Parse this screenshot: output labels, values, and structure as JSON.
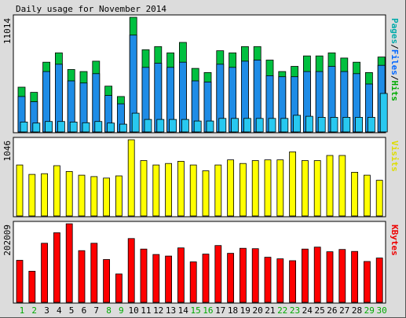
{
  "chart_data": {
    "type": "bar",
    "title": "Daily usage for November 2014",
    "days": [
      "1",
      "2",
      "3",
      "4",
      "5",
      "6",
      "7",
      "8",
      "9",
      "10",
      "11",
      "12",
      "13",
      "14",
      "15",
      "16",
      "17",
      "18",
      "19",
      "20",
      "21",
      "22",
      "23",
      "24",
      "25",
      "26",
      "27",
      "28",
      "29",
      "30"
    ],
    "weekend_days": [
      "1",
      "2",
      "8",
      "9",
      "15",
      "16",
      "22",
      "23",
      "29",
      "30"
    ],
    "panels": [
      {
        "id": "hits",
        "max_label": "11014",
        "ymax": 11014,
        "legend": [
          {
            "text": "Pages",
            "color": "#00aaaa"
          },
          {
            "text": "/",
            "color": "#000000"
          },
          {
            "text": "Files",
            "color": "#0066ff"
          },
          {
            "text": "/",
            "color": "#000000"
          },
          {
            "text": "Hits",
            "color": "#00aa00"
          }
        ],
        "series": [
          {
            "name": "Hits",
            "color": "#00c040",
            "values": [
              4300,
              3800,
              6700,
              7600,
              6000,
              5800,
              6800,
              4400,
              3400,
              11014,
              7900,
              8200,
              7600,
              8600,
              6100,
              5700,
              7800,
              7600,
              8200,
              8200,
              6900,
              5800,
              6300,
              7300,
              7300,
              7600,
              7100,
              6700,
              5700,
              7200
            ]
          },
          {
            "name": "Files",
            "color": "#1e8ce6",
            "values": [
              3400,
              2900,
              5800,
              6500,
              4900,
              4700,
              5600,
              3500,
              2700,
              9300,
              6200,
              6600,
              6200,
              6700,
              4900,
              4800,
              6500,
              6200,
              6800,
              6900,
              5400,
              5300,
              5300,
              5800,
              5800,
              6300,
              5800,
              5600,
              4600,
              6400
            ]
          },
          {
            "name": "Pages",
            "color": "#28c8f0",
            "values": [
              950,
              850,
              1000,
              1000,
              950,
              880,
              1000,
              850,
              750,
              1800,
              1200,
              1200,
              1200,
              1200,
              1050,
              1050,
              1300,
              1300,
              1300,
              1300,
              1300,
              1300,
              1600,
              1500,
              1400,
              1400,
              1400,
              1400,
              1400,
              3700
            ]
          }
        ]
      },
      {
        "id": "visits",
        "max_label": "1046",
        "ymax": 1046,
        "legend": [
          {
            "text": "Visits",
            "color": "#dddd00"
          }
        ],
        "series": [
          {
            "name": "Visits",
            "color": "#ffff00",
            "values": [
              700,
              570,
              580,
              690,
              610,
              560,
              540,
              520,
              550,
              1046,
              760,
              700,
              720,
              750,
              700,
              620,
              700,
              770,
              720,
              760,
              770,
              770,
              880,
              760,
              760,
              830,
              830,
              600,
              560,
              490
            ]
          }
        ]
      },
      {
        "id": "kbytes",
        "max_label": "202009",
        "ymax": 202009,
        "legend": [
          {
            "text": "KBytes",
            "color": "#ee0000"
          }
        ],
        "series": [
          {
            "name": "KBytes",
            "color": "#ff0000",
            "values": [
              108000,
              80000,
              152000,
              179000,
              202009,
              133000,
              152000,
              110000,
              73000,
              164000,
              137000,
              123000,
              119000,
              140000,
              104000,
              124000,
              146000,
              126000,
              139000,
              138000,
              116000,
              112000,
              107000,
              137000,
              142000,
              130000,
              136000,
              131000,
              105000,
              114000
            ]
          }
        ]
      }
    ]
  }
}
